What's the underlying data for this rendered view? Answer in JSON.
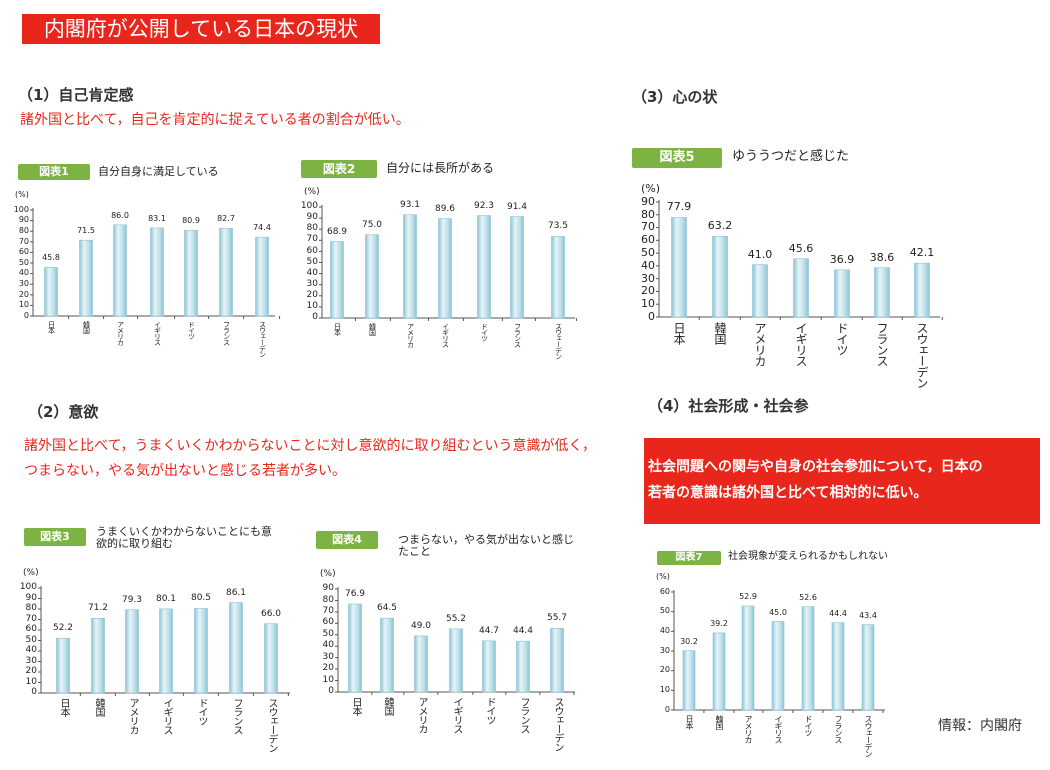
{
  "header": {
    "title": "内閣府が公開している日本の現状"
  },
  "sections": {
    "s1": {
      "heading": "（1）自己肯定感",
      "summary": "諸外国と比べて，自己を肯定的に捉えている者の割合が低い。"
    },
    "s2": {
      "heading": "（2）意欲",
      "summary_line1": "諸外国と比べて，うまくいくかわからないことに対し意欲的に取り組むという意識が低く，",
      "summary_line2": "つまらない，やる気が出ないと感じる若者が多い。"
    },
    "s3": {
      "heading": "（3）心の状"
    },
    "s4": {
      "heading": "（4）社会形成・社会参",
      "summary_line1": "社会問題への関与や自身の社会参加について，日本の",
      "summary_line2": "若者の意識は諸外国と比べて相対的に低い。"
    }
  },
  "source": "情報：内閣府",
  "colors": {
    "accent_red": "#e8261c",
    "badge_green": "#7cb342",
    "bar_fill": "#bfe0ea",
    "bar_edge": "#8cc3d5"
  },
  "chart_data": [
    {
      "type": "bar",
      "badge": "図表1",
      "title": "自分自身に満足している",
      "ylabel": "(%)",
      "ylim": [
        0,
        100
      ],
      "ystep": 10,
      "categories": [
        "日本",
        "韓国",
        "アメリカ",
        "イギリス",
        "ドイツ",
        "フランス",
        "スウェーデン"
      ],
      "values": [
        45.8,
        71.5,
        86.0,
        83.1,
        80.9,
        82.7,
        74.4
      ],
      "labels": [
        "45.8",
        "71.5",
        "86.0",
        "83.1",
        "80.9",
        "82.7",
        "74.4"
      ]
    },
    {
      "type": "bar",
      "badge": "図表2",
      "title": "自分には長所がある",
      "ylabel": "(%)",
      "ylim": [
        0,
        100
      ],
      "ystep": 10,
      "categories": [
        "日本",
        "韓国",
        "アメリカ",
        "イギリス",
        "ドイツ",
        "フランス",
        "スウェーデン"
      ],
      "values": [
        68.9,
        75.0,
        93.1,
        89.6,
        92.3,
        91.4,
        73.5
      ],
      "labels": [
        "68.9",
        "75.0",
        "93.1",
        "89.6",
        "92.3",
        "91.4",
        "73.5"
      ]
    },
    {
      "type": "bar",
      "badge": "図表5",
      "title": "ゆううつだと感じた",
      "ylabel": "(%)",
      "ylim": [
        0,
        90
      ],
      "ystep": 10,
      "categories": [
        "日本",
        "韓国",
        "アメリカ",
        "イギリス",
        "ドイツ",
        "フランス",
        "スウェーデン"
      ],
      "values": [
        77.9,
        63.2,
        41.0,
        45.6,
        36.9,
        38.6,
        42.1
      ],
      "labels": [
        "77.9",
        "63.2",
        "41.0",
        "45.6",
        "36.9",
        "38.6",
        "42.1"
      ]
    },
    {
      "type": "bar",
      "badge": "図表3",
      "title": "うまくいくかわからないことにも意",
      "title2": "欲的に取り組む",
      "ylabel": "(%)",
      "ylim": [
        0,
        100
      ],
      "ystep": 10,
      "categories": [
        "日本",
        "韓国",
        "アメリカ",
        "イギリス",
        "ドイツ",
        "フランス",
        "スウェーデン"
      ],
      "values": [
        52.2,
        71.2,
        79.3,
        80.1,
        80.5,
        86.1,
        66.0
      ],
      "labels": [
        "52.2",
        "71.2",
        "79.3",
        "80.1",
        "80.5",
        "86.1",
        "66.0"
      ]
    },
    {
      "type": "bar",
      "badge": "図表4",
      "title": "つまらない，やる気が出ないと感じ",
      "title2": "たこと",
      "ylabel": "(%)",
      "ylim": [
        0,
        90
      ],
      "ystep": 10,
      "categories": [
        "日本",
        "韓国",
        "アメリカ",
        "イギリス",
        "ドイツ",
        "フランス",
        "スウェーデン"
      ],
      "values": [
        76.9,
        64.5,
        49.0,
        55.2,
        44.7,
        44.4,
        55.7
      ],
      "labels": [
        "76.9",
        "64.5",
        "49.0",
        "55.2",
        "44.7",
        "44.4",
        "55.7"
      ]
    },
    {
      "type": "bar",
      "badge": "図表7",
      "title": "社会現象が変えられるかもしれない",
      "ylabel": "(%)",
      "ylim": [
        0,
        60
      ],
      "ystep": 10,
      "categories": [
        "日本",
        "韓国",
        "アメリカ",
        "イギリス",
        "ドイツ",
        "フランス",
        "スウェーデン"
      ],
      "values": [
        30.2,
        39.2,
        52.9,
        45.0,
        52.6,
        44.4,
        43.4
      ],
      "labels": [
        "30.2",
        "39.2",
        "52.9",
        "45.0",
        "52.6",
        "44.4",
        "43.4"
      ]
    }
  ]
}
